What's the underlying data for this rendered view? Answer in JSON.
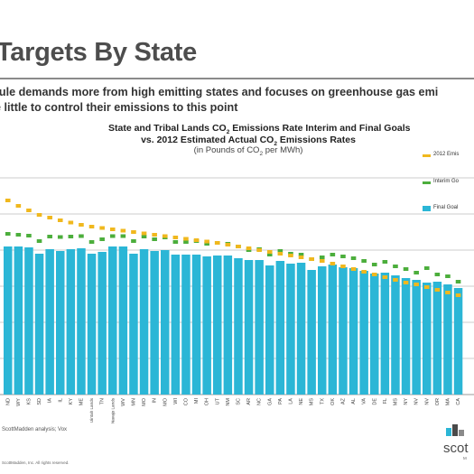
{
  "slide": {
    "title": "Targets By State",
    "subtitle_line1": "rule demands more from high emitting states and focuses on greenhouse gas emi",
    "subtitle_line2": "e little to control their emissions to this point",
    "source": "ScottMadden analysis; Vox",
    "copyright": "ScottMadden, Inc. All rights reserved.",
    "logo_text": "scot",
    "logo_small": "M"
  },
  "chart_title": {
    "line1_pre": "State and Tribal Lands CO",
    "line1_sub": "2",
    "line1_post": " Emissions Rate Interim and Final Goals",
    "line2_pre": "vs. 2012 Estimated Actual CO",
    "line2_sub": "2",
    "line2_post": " Emissions Rates",
    "line3_pre": "(in Pounds of CO",
    "line3_sub": "2",
    "line3_post": " per MWh)"
  },
  "legend": {
    "actual": "2012 Emis",
    "interim": "Interim Go",
    "final": "Final Goal"
  },
  "colors": {
    "actual": "#f0b81e",
    "interim": "#4cae3c",
    "final": "#2bb6d6",
    "grid": "#bdbdbd"
  },
  "chart_data": {
    "type": "bar",
    "categories": [
      "ND",
      "WY",
      "KS",
      "SD",
      "IA",
      "IL",
      "KY",
      "ME",
      "Uintah Lands",
      "TN",
      "Navajo Lands",
      "WV",
      "MN",
      "MO",
      "IN",
      "MO",
      "WI",
      "CO",
      "MI",
      "OH",
      "UT",
      "NM",
      "SC",
      "AR",
      "NC",
      "GA",
      "PA",
      "LA",
      "NE",
      "MS",
      "TX",
      "OK",
      "AZ",
      "AL",
      "VA",
      "DE",
      "FL",
      "MS",
      "NY",
      "NV",
      "NV",
      "OR",
      "MA",
      "CA"
    ],
    "series": [
      {
        "name": "2012 Emis",
        "values": [
          2150,
          2090,
          2040,
          1990,
          1960,
          1930,
          1905,
          1880,
          1860,
          1845,
          1830,
          1815,
          1800,
          1785,
          1770,
          1755,
          1740,
          1725,
          1710,
          1695,
          1680,
          1660,
          1640,
          1620,
          1600,
          1580,
          1560,
          1540,
          1520,
          1500,
          1480,
          1450,
          1420,
          1390,
          1360,
          1330,
          1300,
          1270,
          1240,
          1220,
          1190,
          1160,
          1130,
          1100
        ]
      },
      {
        "name": "Interim Go",
        "values": [
          1780,
          1770,
          1760,
          1700,
          1750,
          1745,
          1750,
          1755,
          1690,
          1720,
          1755,
          1755,
          1700,
          1750,
          1720,
          1740,
          1690,
          1690,
          1700,
          1670,
          1680,
          1670,
          1640,
          1600,
          1610,
          1550,
          1590,
          1560,
          1550,
          1500,
          1520,
          1550,
          1530,
          1510,
          1480,
          1440,
          1470,
          1420,
          1390,
          1350,
          1400,
          1330,
          1310,
          1250
        ]
      },
      {
        "name": "Final Goal",
        "values": [
          1640,
          1640,
          1630,
          1560,
          1610,
          1590,
          1610,
          1620,
          1560,
          1580,
          1640,
          1640,
          1560,
          1610,
          1590,
          1600,
          1550,
          1550,
          1550,
          1530,
          1540,
          1540,
          1510,
          1490,
          1490,
          1430,
          1480,
          1450,
          1460,
          1380,
          1420,
          1440,
          1410,
          1400,
          1370,
          1340,
          1350,
          1320,
          1290,
          1270,
          1240,
          1250,
          1220,
          1180
        ]
      }
    ]
  }
}
